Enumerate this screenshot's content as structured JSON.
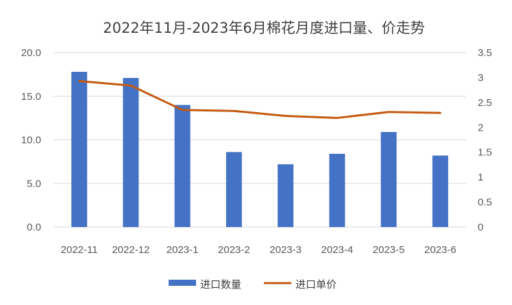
{
  "chart_data": {
    "type": "bar",
    "title": "2022年11月-2023年6月棉花月度进口量、价走势",
    "categories": [
      "2022-11",
      "2022-12",
      "2023-1",
      "2023-2",
      "2023-3",
      "2023-4",
      "2023-5",
      "2023-6"
    ],
    "series": [
      {
        "name": "进口数量",
        "type": "bar",
        "axis": "left",
        "color": "#4472C4",
        "values": [
          17.8,
          17.1,
          14.0,
          8.6,
          7.2,
          8.4,
          10.9,
          8.2
        ]
      },
      {
        "name": "进口单价",
        "type": "line",
        "axis": "right",
        "color": "#C55A11",
        "values": [
          2.93,
          2.84,
          2.35,
          2.33,
          2.23,
          2.19,
          2.31,
          2.29
        ]
      }
    ],
    "ylim": [
      0,
      20
    ],
    "y_ticks": [
      "0.0",
      "5.0",
      "10.0",
      "15.0",
      "20.0"
    ],
    "y2lim": [
      0,
      3.5
    ],
    "y2_ticks": [
      "0",
      "0.5",
      "1",
      "1.5",
      "2",
      "2.5",
      "3",
      "3.5"
    ],
    "grid": true,
    "legend_position": "bottom"
  }
}
